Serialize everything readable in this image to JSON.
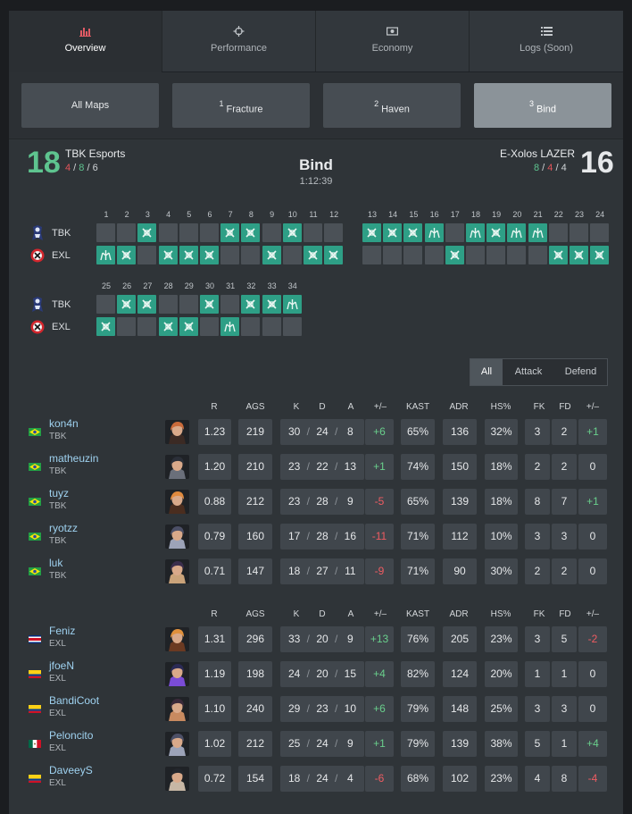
{
  "tabs": [
    {
      "label": "Overview",
      "icon": "bar-chart-icon",
      "active": true
    },
    {
      "label": "Performance",
      "icon": "crosshair-icon",
      "active": false
    },
    {
      "label": "Economy",
      "icon": "money-icon",
      "active": false
    },
    {
      "label": "Logs (Soon)",
      "icon": "list-icon",
      "active": false
    }
  ],
  "maps": [
    {
      "num": "",
      "name": "All Maps",
      "selected": false
    },
    {
      "num": "1",
      "name": "Fracture",
      "selected": false
    },
    {
      "num": "2",
      "name": "Haven",
      "selected": false
    },
    {
      "num": "3",
      "name": "Bind",
      "selected": true
    }
  ],
  "match": {
    "map": "Bind",
    "duration": "1:12:39",
    "team1": {
      "name": "TBK Esports",
      "short": "TBK",
      "score": "18",
      "atk": "4",
      "def": "8",
      "ot": "6"
    },
    "team2": {
      "name": "E-Xolos LAZER",
      "short": "EXL",
      "score": "16",
      "atk": "8",
      "def": "4",
      "ot": "4"
    }
  },
  "rounds_tbk": [
    "L",
    "L",
    "W",
    "L",
    "L",
    "L",
    "W",
    "W",
    "L",
    "W",
    "L",
    "L",
    "W",
    "W",
    "W",
    "W",
    "L",
    "W",
    "W",
    "W",
    "W",
    "L",
    "L",
    "L",
    "L",
    "W",
    "W",
    "L",
    "L",
    "W",
    "L",
    "W",
    "W",
    "W"
  ],
  "rounds_exl": [
    "W",
    "W",
    "L",
    "W",
    "W",
    "W",
    "L",
    "L",
    "W",
    "L",
    "W",
    "W",
    "L",
    "L",
    "L",
    "L",
    "W",
    "L",
    "L",
    "L",
    "L",
    "W",
    "W",
    "W",
    "W",
    "L",
    "L",
    "W",
    "W",
    "L",
    "W",
    "L",
    "L",
    "L"
  ],
  "round_types_tbk": [
    "",
    "",
    "x",
    "",
    "",
    "",
    "x",
    "x",
    "",
    "x",
    "",
    "",
    "x",
    "x",
    "x",
    "s",
    "",
    "s",
    "x",
    "s",
    "s",
    "",
    "",
    "",
    "",
    "x",
    "x",
    "",
    "",
    "x",
    "",
    "x",
    "x",
    "s"
  ],
  "round_types_exl": [
    "s",
    "x",
    "",
    "x",
    "x",
    "x",
    "",
    "",
    "x",
    "",
    "x",
    "x",
    "",
    "",
    "",
    "",
    "x",
    "",
    "",
    "",
    "",
    "x",
    "x",
    "x",
    "x",
    "",
    "",
    "x",
    "x",
    "",
    "s",
    "",
    "",
    ""
  ],
  "filter": {
    "all": "All",
    "attack": "Attack",
    "defend": "Defend",
    "selected": "All"
  },
  "headers": {
    "r": "R",
    "ags": "AGS",
    "k": "K",
    "d": "D",
    "a": "A",
    "pm": "+/–",
    "kast": "KAST",
    "adr": "ADR",
    "hs": "HS%",
    "fk": "FK",
    "fd": "FD",
    "fpm": "+/–"
  },
  "players1": [
    {
      "name": "kon4n",
      "team": "TBK",
      "flag": "BR",
      "r": "1.23",
      "ags": "219",
      "k": "30",
      "d": "24",
      "a": "8",
      "pm": "+6",
      "kast": "65%",
      "adr": "136",
      "hs": "32%",
      "fk": "3",
      "fd": "2",
      "fpm": "+1"
    },
    {
      "name": "matheuzin",
      "team": "TBK",
      "flag": "BR",
      "r": "1.20",
      "ags": "210",
      "k": "23",
      "d": "22",
      "a": "13",
      "pm": "+1",
      "kast": "74%",
      "adr": "150",
      "hs": "18%",
      "fk": "2",
      "fd": "2",
      "fpm": "0"
    },
    {
      "name": "tuyz",
      "team": "TBK",
      "flag": "BR",
      "r": "0.88",
      "ags": "212",
      "k": "23",
      "d": "28",
      "a": "9",
      "pm": "-5",
      "kast": "65%",
      "adr": "139",
      "hs": "18%",
      "fk": "8",
      "fd": "7",
      "fpm": "+1"
    },
    {
      "name": "ryotzz",
      "team": "TBK",
      "flag": "BR",
      "r": "0.79",
      "ags": "160",
      "k": "17",
      "d": "28",
      "a": "16",
      "pm": "-11",
      "kast": "71%",
      "adr": "112",
      "hs": "10%",
      "fk": "3",
      "fd": "3",
      "fpm": "0"
    },
    {
      "name": "luk",
      "team": "TBK",
      "flag": "BR",
      "r": "0.71",
      "ags": "147",
      "k": "18",
      "d": "27",
      "a": "11",
      "pm": "-9",
      "kast": "71%",
      "adr": "90",
      "hs": "30%",
      "fk": "2",
      "fd": "2",
      "fpm": "0"
    }
  ],
  "players2": [
    {
      "name": "Feniz",
      "team": "EXL",
      "flag": "CR",
      "r": "1.31",
      "ags": "296",
      "k": "33",
      "d": "20",
      "a": "9",
      "pm": "+13",
      "kast": "76%",
      "adr": "205",
      "hs": "23%",
      "fk": "3",
      "fd": "5",
      "fpm": "-2"
    },
    {
      "name": "jfoeN",
      "team": "EXL",
      "flag": "CO",
      "r": "1.19",
      "ags": "198",
      "k": "24",
      "d": "20",
      "a": "15",
      "pm": "+4",
      "kast": "82%",
      "adr": "124",
      "hs": "20%",
      "fk": "1",
      "fd": "1",
      "fpm": "0"
    },
    {
      "name": "BandiCoot",
      "team": "EXL",
      "flag": "CO",
      "r": "1.10",
      "ags": "240",
      "k": "29",
      "d": "23",
      "a": "10",
      "pm": "+6",
      "kast": "79%",
      "adr": "148",
      "hs": "25%",
      "fk": "3",
      "fd": "3",
      "fpm": "0"
    },
    {
      "name": "Peloncito",
      "team": "EXL",
      "flag": "MX",
      "r": "1.02",
      "ags": "212",
      "k": "25",
      "d": "24",
      "a": "9",
      "pm": "+1",
      "kast": "79%",
      "adr": "139",
      "hs": "38%",
      "fk": "5",
      "fd": "1",
      "fpm": "+4"
    },
    {
      "name": "DaveeyS",
      "team": "EXL",
      "flag": "CO",
      "r": "0.72",
      "ags": "154",
      "k": "18",
      "d": "24",
      "a": "4",
      "pm": "-6",
      "kast": "68%",
      "adr": "102",
      "hs": "23%",
      "fk": "4",
      "fd": "8",
      "fpm": "-4"
    }
  ],
  "colors": {
    "win": "#2e9f86",
    "loss": "#cc5257",
    "accent_green": "#5ec48f",
    "accent_red": "#e3545a"
  }
}
